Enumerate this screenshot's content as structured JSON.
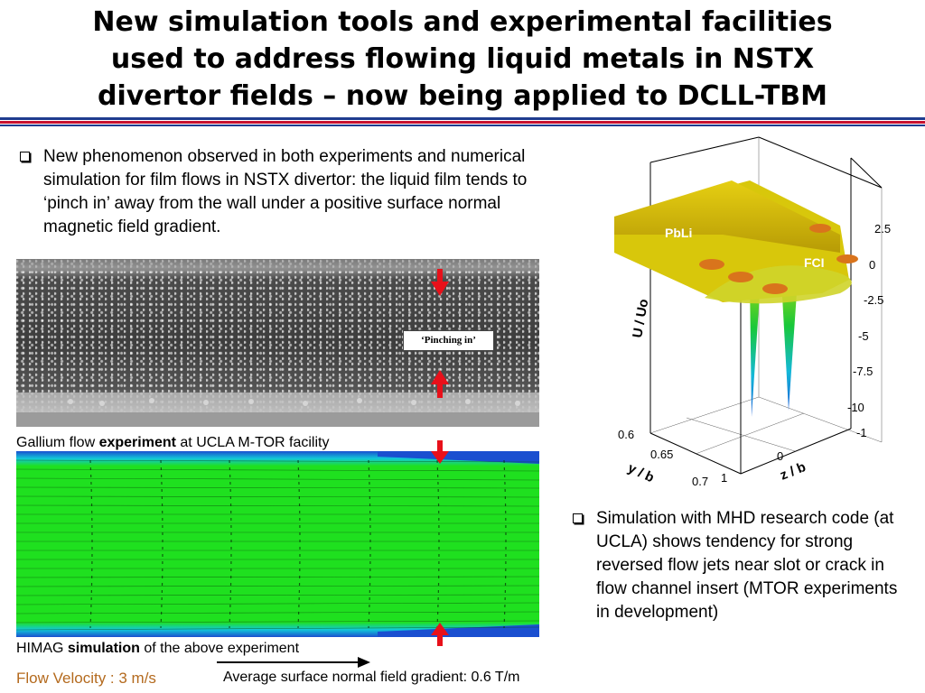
{
  "slide": {
    "title_lines": [
      "New simulation tools and experimental facilities",
      "used to address flowing liquid metals in NSTX",
      "divertor fields – now being applied to DCLL-TBM"
    ]
  },
  "bullets": {
    "first": "New phenomenon observed in both experiments and numerical simulation for film flows in NSTX divertor: the liquid film tends to ‘pinch in’ away from the wall under a positive surface normal magnetic field gradient.",
    "second": "Simulation with MHD research code (at UCLA) shows tendency for strong reversed flow jets near slot or crack in flow channel insert (MTOR experiments in development)"
  },
  "experiment": {
    "label": "‘Pinching in’",
    "caption_pre": "Gallium flow ",
    "caption_bold": "experiment",
    "caption_post": " at UCLA M-TOR facility"
  },
  "simulation": {
    "caption_pre": "HIMAG ",
    "caption_bold": "simulation",
    "caption_post": " of the above experiment"
  },
  "footer": {
    "flow_velocity": "Flow Velocity : 3 m/s",
    "field_gradient": "Average surface normal field gradient: 0.6 T/m"
  },
  "plot3d": {
    "label_pbli": "PbLi",
    "label_fci": "FCI",
    "axis_u": "U / Uo",
    "axis_y": "y / b",
    "axis_z": "z / b",
    "u_ticks": [
      "2.5",
      "0",
      "-2.5",
      "-5",
      "-7.5",
      "-10"
    ],
    "y_ticks": [
      "0.6",
      "0.65",
      "0.7"
    ],
    "z_ticks": [
      "-1",
      "0",
      "1"
    ]
  },
  "colors": {
    "rule_blue": "#1f3c8f",
    "rule_red": "#c8102e",
    "arrow_red": "#e8101a",
    "flow_velocity_text": "#b46a1e",
    "sim_green": "#1fe01f",
    "sim_blue": "#1a4fd0",
    "pbli_yellow": "#e6cf12"
  }
}
